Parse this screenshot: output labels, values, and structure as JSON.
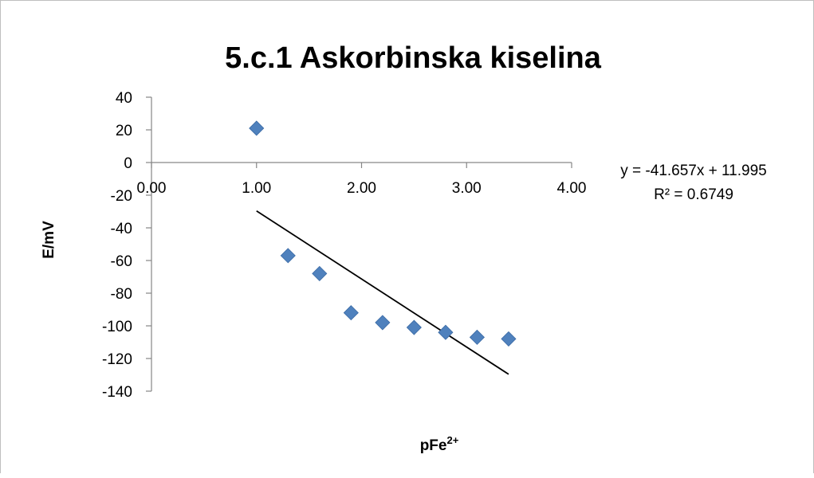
{
  "chart_data": {
    "type": "scatter",
    "title": "5.c.1 Askorbinska kiselina",
    "xlabel": "pFe",
    "xlabel_sup": "2+",
    "ylabel": "E/mV",
    "xlim": [
      0,
      4
    ],
    "ylim": [
      -140,
      40
    ],
    "x_ticks": [
      0,
      1,
      2,
      3,
      4
    ],
    "x_tick_labels": [
      "0.00",
      "1.00",
      "2.00",
      "3.00",
      "4.00"
    ],
    "y_ticks": [
      40,
      20,
      0,
      -20,
      -40,
      -60,
      -80,
      -100,
      -120,
      -140
    ],
    "y_tick_labels": [
      "40",
      "20",
      "0",
      "-20",
      "-40",
      "-60",
      "-80",
      "-100",
      "-120",
      "-140"
    ],
    "grid": false,
    "legend": "none",
    "marker": "diamond",
    "marker_color": "#4f81bd",
    "points": [
      {
        "x": 1.0,
        "y": 21
      },
      {
        "x": 1.3,
        "y": -57
      },
      {
        "x": 1.6,
        "y": -68
      },
      {
        "x": 1.9,
        "y": -92
      },
      {
        "x": 2.2,
        "y": -98
      },
      {
        "x": 2.5,
        "y": -101
      },
      {
        "x": 2.8,
        "y": -104
      },
      {
        "x": 3.1,
        "y": -107
      },
      {
        "x": 3.4,
        "y": -108
      }
    ],
    "trendline": {
      "type": "linear",
      "slope": -41.657,
      "intercept": 11.995,
      "x_range": [
        1.0,
        3.4
      ],
      "equation": "y = -41.657x + 11.995",
      "r_squared": "R² = 0.6749",
      "color": "#000000"
    }
  }
}
